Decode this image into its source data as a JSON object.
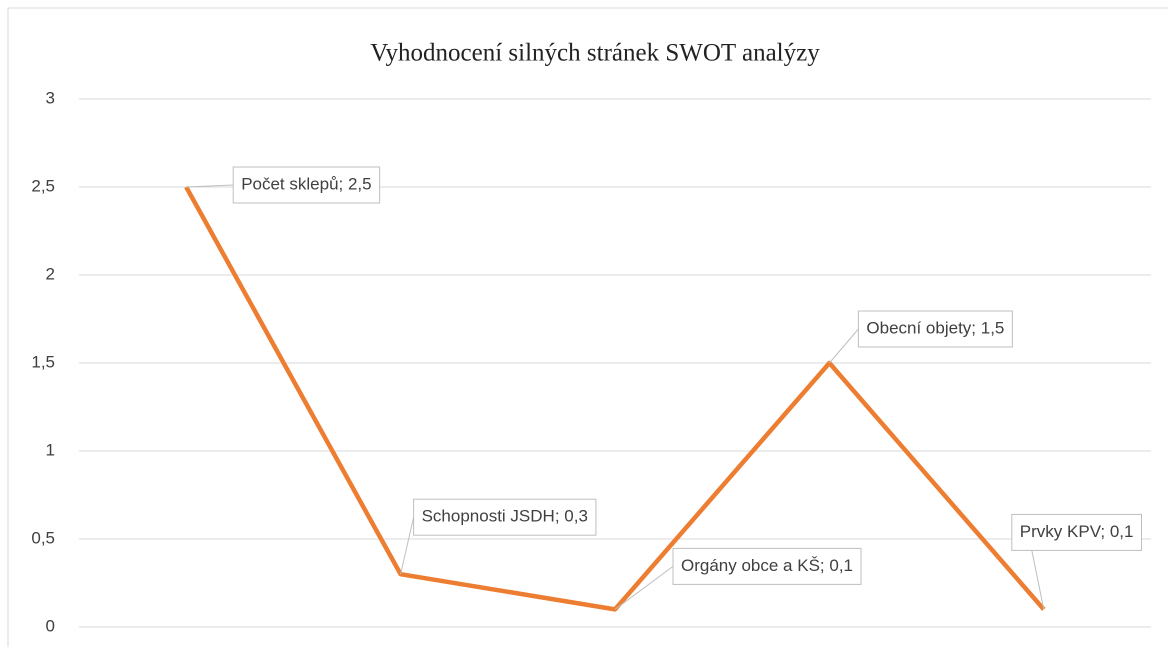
{
  "chart_data": {
    "type": "line",
    "title": "Vyhodnocení silných stránek SWOT analýzy",
    "categories": [
      null,
      null,
      null,
      null,
      null
    ],
    "series": [
      {
        "color": "#ed7d31",
        "values": [
          2.5,
          0.3,
          0.1,
          1.5,
          0.1
        ],
        "value_labels": [
          "Počet sklepů; 2,5",
          "Schopnosti JSDH; 0,3",
          "Orgány obce a KŠ; 0,1",
          "Obecní objety; 1,5",
          "Prvky KPV; 0,1"
        ]
      }
    ],
    "ylim": [
      0,
      3
    ],
    "yticks": [
      0,
      {
        "value": 0.5,
        "label": "0,5"
      },
      1,
      {
        "value": 1.5,
        "label": "1,5"
      },
      2,
      {
        "value": 2.5,
        "label": "2,5"
      },
      3
    ],
    "grid": true
  }
}
